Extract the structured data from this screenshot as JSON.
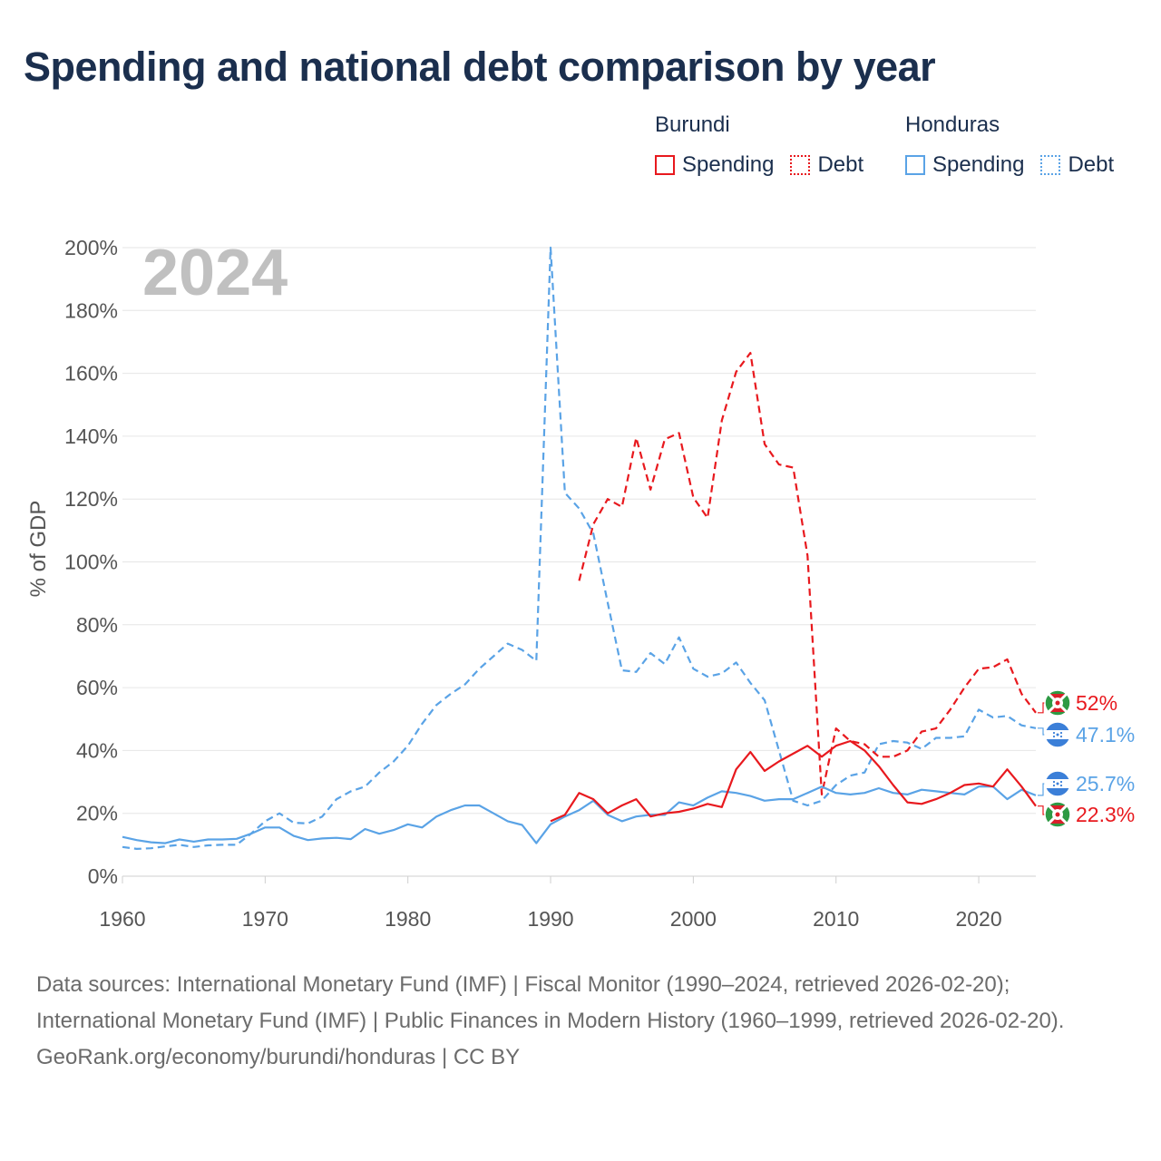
{
  "title": "Spending and national debt comparison by year",
  "legend": {
    "groups": [
      {
        "name": "Burundi",
        "color": "#e8191e",
        "items": [
          "Spending",
          "Debt"
        ]
      },
      {
        "name": "Honduras",
        "color": "#5aa3e6",
        "items": [
          "Spending",
          "Debt"
        ]
      }
    ]
  },
  "year_watermark": "2024",
  "footer": {
    "sources": "Data sources: International Monetary Fund (IMF) | Fiscal Monitor (1990–2024, retrieved 2026-02-20); International Monetary Fund (IMF) | Public Finances in Modern History (1960–1999, retrieved 2026-02-20).",
    "credit": "GeoRank.org/economy/burundi/honduras | CC BY"
  },
  "chart_data": {
    "type": "line",
    "title": "Spending and national debt comparison by year",
    "xlabel": "",
    "ylabel": "% of GDP",
    "xlim": [
      1960,
      2024
    ],
    "ylim": [
      0,
      200
    ],
    "xticks": [
      1960,
      1970,
      1980,
      1990,
      2000,
      2010,
      2020
    ],
    "yticks": [
      0,
      20,
      40,
      60,
      80,
      100,
      120,
      140,
      160,
      180,
      200
    ],
    "ytick_labels": [
      "0%",
      "20%",
      "40%",
      "60%",
      "80%",
      "100%",
      "120%",
      "140%",
      "160%",
      "180%",
      "200%"
    ],
    "grid": true,
    "series": [
      {
        "name": "Honduras Debt",
        "country": "Honduras",
        "kind": "Debt",
        "color": "#5aa3e6",
        "dash": true,
        "x": [
          1960,
          1961,
          1962,
          1963,
          1964,
          1965,
          1966,
          1967,
          1968,
          1969,
          1970,
          1971,
          1972,
          1973,
          1974,
          1975,
          1976,
          1977,
          1978,
          1979,
          1980,
          1981,
          1982,
          1983,
          1984,
          1985,
          1986,
          1987,
          1988,
          1989,
          1990,
          1991,
          1992,
          1993,
          1994,
          1995,
          1996,
          1997,
          1998,
          1999,
          2000,
          2001,
          2002,
          2003,
          2004,
          2005,
          2006,
          2007,
          2008,
          2009,
          2010,
          2011,
          2012,
          2013,
          2014,
          2015,
          2016,
          2017,
          2018,
          2019,
          2020,
          2021,
          2022,
          2023,
          2024
        ],
        "values": [
          9.3,
          8.7,
          8.9,
          9.5,
          10,
          9.3,
          9.8,
          10,
          10,
          13.5,
          17.5,
          20,
          17,
          16.8,
          19,
          24.5,
          27,
          28.5,
          33,
          36.5,
          41.5,
          48.5,
          54.5,
          58,
          61,
          66,
          70,
          74,
          72,
          68.5,
          200,
          122,
          117,
          109,
          87,
          65.5,
          65,
          71,
          67.5,
          76,
          66,
          63.5,
          64.5,
          68,
          61.5,
          56,
          40,
          24,
          22.5,
          24,
          29,
          32,
          33,
          42,
          43,
          42.5,
          40.5,
          44,
          44,
          44.5,
          53,
          50.5,
          51,
          48,
          47.1
        ],
        "end_label": "47.1%"
      },
      {
        "name": "Burundi Debt",
        "country": "Burundi",
        "kind": "Debt",
        "color": "#e8191e",
        "dash": true,
        "x": [
          1992,
          1993,
          1994,
          1995,
          1996,
          1997,
          1998,
          1999,
          2000,
          2001,
          2002,
          2003,
          2004,
          2005,
          2006,
          2007,
          2008,
          2009,
          2010,
          2011,
          2012,
          2013,
          2014,
          2015,
          2016,
          2017,
          2018,
          2019,
          2020,
          2021,
          2022,
          2023,
          2024
        ],
        "values": [
          94,
          112,
          120,
          117.5,
          139.5,
          123,
          139,
          141,
          120.5,
          114,
          145,
          160.5,
          166.5,
          137.5,
          131,
          130,
          102,
          26,
          47,
          43,
          42,
          38,
          38,
          40,
          46,
          47,
          53,
          60,
          66,
          66.5,
          69,
          58,
          52
        ],
        "end_label": "52%"
      },
      {
        "name": "Honduras Spending",
        "country": "Honduras",
        "kind": "Spending",
        "color": "#5aa3e6",
        "dash": false,
        "x": [
          1960,
          1961,
          1962,
          1963,
          1964,
          1965,
          1966,
          1967,
          1968,
          1969,
          1970,
          1971,
          1972,
          1973,
          1974,
          1975,
          1976,
          1977,
          1978,
          1979,
          1980,
          1981,
          1982,
          1983,
          1984,
          1985,
          1986,
          1987,
          1988,
          1989,
          1990,
          1991,
          1992,
          1993,
          1994,
          1995,
          1996,
          1997,
          1998,
          1999,
          2000,
          2001,
          2002,
          2003,
          2004,
          2005,
          2006,
          2007,
          2008,
          2009,
          2010,
          2011,
          2012,
          2013,
          2014,
          2015,
          2016,
          2017,
          2018,
          2019,
          2020,
          2021,
          2022,
          2023,
          2024
        ],
        "values": [
          12.5,
          11.5,
          10.8,
          10.5,
          11.7,
          11,
          11.7,
          11.7,
          11.9,
          13.5,
          15.5,
          15.5,
          12.8,
          11.5,
          12,
          12.2,
          11.8,
          15,
          13.5,
          14.7,
          16.5,
          15.5,
          19,
          21,
          22.5,
          22.5,
          20,
          17.5,
          16.3,
          10.5,
          16.5,
          19,
          21,
          24,
          19.5,
          17.5,
          19,
          19.5,
          19.5,
          23.5,
          22.5,
          25,
          27,
          26.5,
          25.5,
          24,
          24.5,
          24.5,
          26.5,
          28.5,
          26.5,
          26,
          26.5,
          28,
          26.5,
          26,
          27.5,
          27,
          26.5,
          26,
          28.5,
          28.5,
          24.5,
          27.5,
          25.7
        ],
        "end_label": "25.7%"
      },
      {
        "name": "Burundi Spending",
        "country": "Burundi",
        "kind": "Spending",
        "color": "#e8191e",
        "dash": false,
        "x": [
          1990,
          1991,
          1992,
          1993,
          1994,
          1995,
          1996,
          1997,
          1998,
          1999,
          2000,
          2001,
          2002,
          2003,
          2004,
          2005,
          2006,
          2007,
          2008,
          2009,
          2010,
          2011,
          2012,
          2013,
          2014,
          2015,
          2016,
          2017,
          2018,
          2019,
          2020,
          2021,
          2022,
          2023,
          2024
        ],
        "values": [
          17.5,
          19.5,
          26.5,
          24.5,
          20,
          22.5,
          24.5,
          19,
          20,
          20.5,
          21.5,
          23,
          22,
          34,
          39.5,
          33.5,
          36.5,
          39,
          41.5,
          38,
          41.5,
          43,
          40,
          35,
          29,
          23.5,
          23,
          24.5,
          26.5,
          29,
          29.5,
          28.5,
          34,
          28.5,
          22.3
        ],
        "end_label": "22.3%"
      }
    ]
  }
}
